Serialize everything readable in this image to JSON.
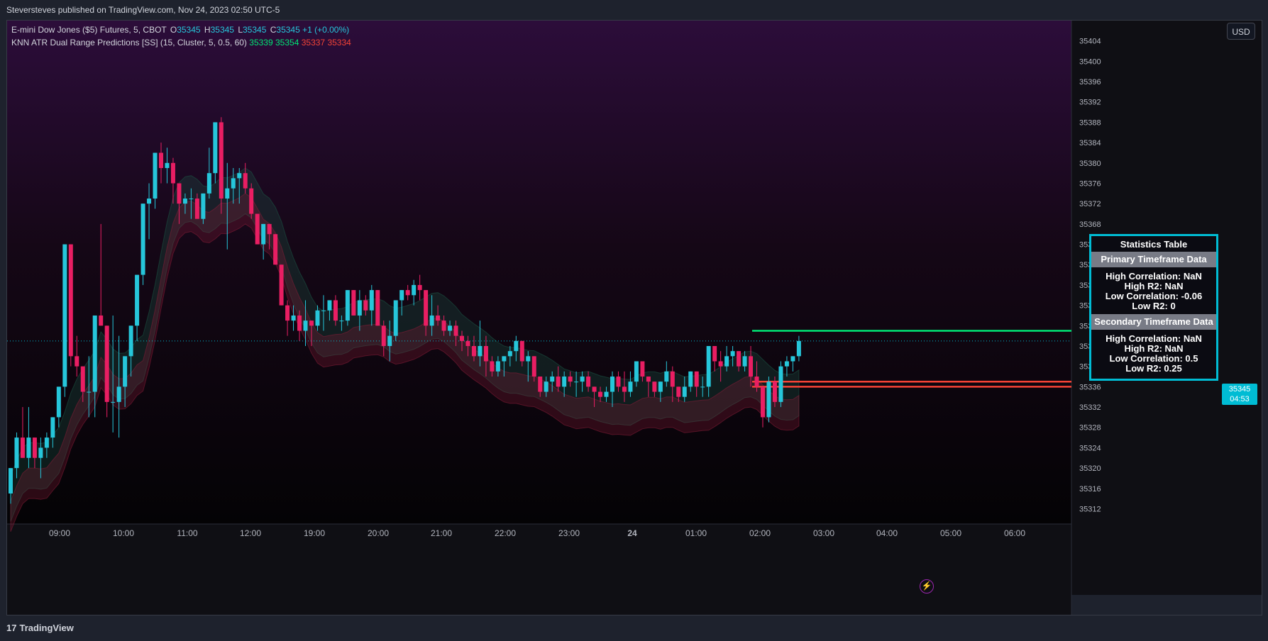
{
  "header": {
    "published": "Steversteves published on TradingView.com, Nov 24, 2023 02:50 UTC-5"
  },
  "legend": {
    "symbol": "E-mini Dow Jones ($5) Futures, 5, CBOT",
    "open_label": "O",
    "open": "35345",
    "high_label": "H",
    "high": "35345",
    "low_label": "L",
    "low": "35345",
    "close_label": "C",
    "close": "35345",
    "change": "+1 (+0.00%)",
    "indicator": "KNN ATR Dual Range Predictions [SS] (15, Cluster, 5, 0.5, 60)",
    "ind_values": [
      "35339",
      "35354",
      "35337",
      "35334"
    ]
  },
  "currency_button": "USD",
  "price_tag": {
    "price": "35345",
    "countdown": "04:53"
  },
  "stats_table": {
    "title": "Statistics Table",
    "primary_header": "Primary Timeframe Data",
    "primary_rows": [
      "High Correlation: NaN",
      "High R2: NaN",
      "Low Correlation: -0.06",
      "Low R2: 0"
    ],
    "secondary_header": "Secondary Timeframe Data",
    "secondary_rows": [
      "High Correlation: NaN",
      "High R2: NaN",
      "Low Correlation: 0.5",
      "Low R2: 0.25"
    ]
  },
  "footer": {
    "brand": "TradingView",
    "logo_glyph": "17"
  },
  "icons": {
    "bolt": "lightning-icon"
  },
  "colors": {
    "up": "#26c6da",
    "down": "#e91e63",
    "green_line": "#00e676",
    "red_line": "#f44336",
    "accent": "#00bcd4"
  },
  "chart_data": {
    "type": "candlestick",
    "title": "",
    "xlabel": "",
    "ylabel": "",
    "ylim": [
      35309,
      35408
    ],
    "y_ticks": [
      35404,
      35400,
      35396,
      35392,
      35388,
      35384,
      35380,
      35376,
      35372,
      35368,
      35364,
      35360,
      35356,
      35352,
      35348,
      35344,
      35340,
      35336,
      35332,
      35328,
      35324,
      35320,
      35316,
      35312
    ],
    "x_ticks": [
      "09:00",
      "10:00",
      "11:00",
      "12:00",
      "19:00",
      "20:00",
      "21:00",
      "22:00",
      "23:00",
      "24",
      "01:00",
      "02:00",
      "03:00",
      "04:00",
      "05:00",
      "06:00"
    ],
    "current_price": 35345,
    "horizontal_levels": [
      {
        "value": 35347,
        "color": "#00e676"
      },
      {
        "value": 35337,
        "color": "#f44336"
      },
      {
        "value": 35336,
        "color": "#f44336"
      }
    ],
    "candles": [
      [
        35315,
        35320,
        35313,
        35320
      ],
      [
        35320,
        35327,
        35318,
        35326
      ],
      [
        35326,
        35332,
        35322,
        35322
      ],
      [
        35322,
        35332,
        35320,
        35326
      ],
      [
        35326,
        35326,
        35320,
        35322
      ],
      [
        35322,
        35326,
        35318,
        35324
      ],
      [
        35324,
        35327,
        35322,
        35326
      ],
      [
        35326,
        35330,
        35324,
        35330
      ],
      [
        35330,
        35336,
        35328,
        35336
      ],
      [
        35336,
        35364,
        35334,
        35364
      ],
      [
        35364,
        35364,
        35340,
        35342
      ],
      [
        35342,
        35346,
        35338,
        35340
      ],
      [
        35340,
        35340,
        35333,
        35335
      ],
      [
        35335,
        35342,
        35330,
        35335
      ],
      [
        35335,
        35350,
        35330,
        35350
      ],
      [
        35350,
        35368,
        35348,
        35348
      ],
      [
        35348,
        35348,
        35330,
        35333
      ],
      [
        35333,
        35350,
        35327,
        35333
      ],
      [
        35333,
        35346,
        35326,
        35336
      ],
      [
        35336,
        35342,
        35332,
        35342
      ],
      [
        35342,
        35348,
        35338,
        35348
      ],
      [
        35348,
        35358,
        35345,
        35358
      ],
      [
        35358,
        35372,
        35356,
        35372
      ],
      [
        35372,
        35376,
        35365,
        35373
      ],
      [
        35373,
        35382,
        35371,
        35382
      ],
      [
        35382,
        35384,
        35376,
        35379
      ],
      [
        35379,
        35383,
        35376,
        35380
      ],
      [
        35380,
        35381,
        35372,
        35376
      ],
      [
        35376,
        35376,
        35368,
        35372
      ],
      [
        35372,
        35374,
        35370,
        35373
      ],
      [
        35373,
        35375,
        35369,
        35373
      ],
      [
        35373,
        35374,
        35369,
        35369
      ],
      [
        35369,
        35374,
        35368,
        35374
      ],
      [
        35374,
        35383,
        35373,
        35378
      ],
      [
        35378,
        35388,
        35376,
        35388
      ],
      [
        35388,
        35389,
        35370,
        35373
      ],
      [
        35373,
        35380,
        35363,
        35375
      ],
      [
        35375,
        35379,
        35372,
        35377
      ],
      [
        35377,
        35379,
        35372,
        35378
      ],
      [
        35378,
        35380,
        35374,
        35375
      ],
      [
        35375,
        35376,
        35369,
        35370
      ],
      [
        35370,
        35370,
        35364,
        35364
      ],
      [
        35364,
        35368,
        35361,
        35368
      ],
      [
        35368,
        35368,
        35363,
        35366
      ],
      [
        35366,
        35366,
        35360,
        35360
      ],
      [
        35360,
        35360,
        35352,
        35352
      ],
      [
        35352,
        35353,
        35346,
        35349
      ],
      [
        35349,
        35352,
        35347,
        35350
      ],
      [
        35350,
        35351,
        35345,
        35347
      ],
      [
        35347,
        35353,
        35344,
        35349
      ],
      [
        35349,
        35349,
        35344,
        35348
      ],
      [
        35348,
        35352,
        35347,
        35351
      ],
      [
        35351,
        35354,
        35347,
        35351
      ],
      [
        35351,
        35353,
        35349,
        35353
      ],
      [
        35353,
        35354,
        35348,
        35349
      ],
      [
        35349,
        35350,
        35347,
        35349
      ],
      [
        35349,
        35355,
        35348,
        35355
      ],
      [
        35355,
        35355,
        35350,
        35350
      ],
      [
        35350,
        35355,
        35347,
        35353
      ],
      [
        35353,
        35354,
        35350,
        35351
      ],
      [
        35351,
        35356,
        35348,
        35355
      ],
      [
        35355,
        35355,
        35348,
        35348
      ],
      [
        35348,
        35349,
        35342,
        35344
      ],
      [
        35344,
        35349,
        35341,
        35346
      ],
      [
        35346,
        35353,
        35345,
        35353
      ],
      [
        35353,
        35355,
        35350,
        35355
      ],
      [
        35355,
        35356,
        35353,
        35354
      ],
      [
        35354,
        35357,
        35352,
        35356
      ],
      [
        35356,
        35358,
        35353,
        35355
      ],
      [
        35355,
        35355,
        35346,
        35348
      ],
      [
        35348,
        35354,
        35346,
        35350
      ],
      [
        35350,
        35352,
        35348,
        35349
      ],
      [
        35349,
        35350,
        35346,
        35347
      ],
      [
        35347,
        35349,
        35346,
        35348
      ],
      [
        35348,
        35349,
        35344,
        35346
      ],
      [
        35346,
        35347,
        35343,
        35345
      ],
      [
        35345,
        35346,
        35342,
        35344
      ],
      [
        35344,
        35346,
        35341,
        35342
      ],
      [
        35342,
        35349,
        35340,
        35344
      ],
      [
        35344,
        35346,
        35338,
        35341
      ],
      [
        35341,
        35342,
        35338,
        35339
      ],
      [
        35339,
        35342,
        35338,
        35341
      ],
      [
        35341,
        35342,
        35338,
        35342
      ],
      [
        35342,
        35344,
        35340,
        35343
      ],
      [
        35343,
        35346,
        35341,
        35345
      ],
      [
        35345,
        35345,
        35340,
        35341
      ],
      [
        35341,
        35343,
        35337,
        35342
      ],
      [
        35342,
        35342,
        35337,
        35338
      ],
      [
        35338,
        35338,
        35334,
        35335
      ],
      [
        35335,
        35338,
        35334,
        35337
      ],
      [
        35337,
        35339,
        35335,
        35338
      ],
      [
        35338,
        35340,
        35335,
        35336
      ],
      [
        35336,
        35339,
        35334,
        35338
      ],
      [
        35338,
        35339,
        35336,
        35337
      ],
      [
        35337,
        35339,
        35334,
        35337
      ],
      [
        35337,
        35339,
        35335,
        35338
      ],
      [
        35338,
        35339,
        35335,
        35336
      ],
      [
        35336,
        35336,
        35332,
        35335
      ],
      [
        35335,
        35336,
        35333,
        35334
      ],
      [
        35334,
        35336,
        35333,
        35335
      ],
      [
        35335,
        35339,
        35332,
        35338
      ],
      [
        35338,
        35339,
        35335,
        35336
      ],
      [
        35336,
        35339,
        35333,
        35335
      ],
      [
        35335,
        35339,
        35334,
        35337
      ],
      [
        35337,
        35341,
        35336,
        35341
      ],
      [
        35341,
        35341,
        35337,
        35338
      ],
      [
        35338,
        35338,
        35334,
        35337
      ],
      [
        35337,
        35337,
        35334,
        35335
      ],
      [
        35335,
        35337,
        35333,
        35337
      ],
      [
        35337,
        35341,
        35336,
        35339
      ],
      [
        35339,
        35340,
        35333,
        35336
      ],
      [
        35336,
        35336,
        35333,
        35334
      ],
      [
        35334,
        35338,
        35333,
        35336
      ],
      [
        35336,
        35339,
        35335,
        35339
      ],
      [
        35339,
        35339,
        35334,
        35336
      ],
      [
        35336,
        35338,
        35334,
        35336
      ],
      [
        35336,
        35344,
        35334,
        35344
      ],
      [
        35344,
        35344,
        35339,
        35341
      ],
      [
        35341,
        35343,
        35337,
        35340
      ],
      [
        35340,
        35344,
        35339,
        35342
      ],
      [
        35342,
        35344,
        35340,
        35343
      ],
      [
        35343,
        35343,
        35339,
        35340
      ],
      [
        35340,
        35343,
        35339,
        35342
      ],
      [
        35342,
        35344,
        35336,
        35338
      ],
      [
        35338,
        35341,
        35335,
        35336
      ],
      [
        35336,
        35336,
        35328,
        35330
      ],
      [
        35330,
        35338,
        35329,
        35337
      ],
      [
        35337,
        35338,
        35332,
        35333
      ],
      [
        35333,
        35341,
        35332,
        35340
      ],
      [
        35340,
        35342,
        35338,
        35341
      ],
      [
        35341,
        35342,
        35339,
        35342
      ],
      [
        35342,
        35346,
        35341,
        35345
      ]
    ]
  }
}
